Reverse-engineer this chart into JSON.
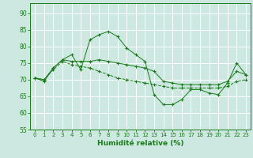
{
  "title": "",
  "xlabel": "Humidité relative (%)",
  "ylabel": "",
  "background_color": "#cce8e0",
  "grid_color": "#ffffff",
  "line_color": "#1a7a1a",
  "xlim": [
    -0.5,
    23.5
  ],
  "ylim": [
    55,
    93
  ],
  "yticks": [
    55,
    60,
    65,
    70,
    75,
    80,
    85,
    90
  ],
  "xticks": [
    0,
    1,
    2,
    3,
    4,
    5,
    6,
    7,
    8,
    9,
    10,
    11,
    12,
    13,
    14,
    15,
    16,
    17,
    18,
    19,
    20,
    21,
    22,
    23
  ],
  "line1": [
    70.5,
    69.5,
    73.5,
    76.0,
    77.5,
    73.0,
    82.0,
    83.5,
    84.5,
    83.0,
    79.5,
    77.5,
    75.5,
    65.5,
    62.5,
    62.5,
    64.0,
    67.0,
    67.0,
    66.0,
    65.5,
    69.0,
    75.0,
    71.5
  ],
  "line2": [
    70.5,
    70.0,
    73.5,
    76.0,
    75.5,
    75.5,
    75.5,
    76.0,
    75.5,
    75.0,
    74.5,
    74.0,
    73.5,
    72.5,
    69.5,
    69.0,
    68.5,
    68.5,
    68.5,
    68.5,
    68.5,
    69.5,
    72.5,
    71.5
  ],
  "line3": [
    70.5,
    70.0,
    73.0,
    75.5,
    74.5,
    74.0,
    73.5,
    72.5,
    71.5,
    70.5,
    70.0,
    69.5,
    69.0,
    68.5,
    68.0,
    67.5,
    67.5,
    67.5,
    67.5,
    67.5,
    67.5,
    68.0,
    69.5,
    70.0
  ]
}
